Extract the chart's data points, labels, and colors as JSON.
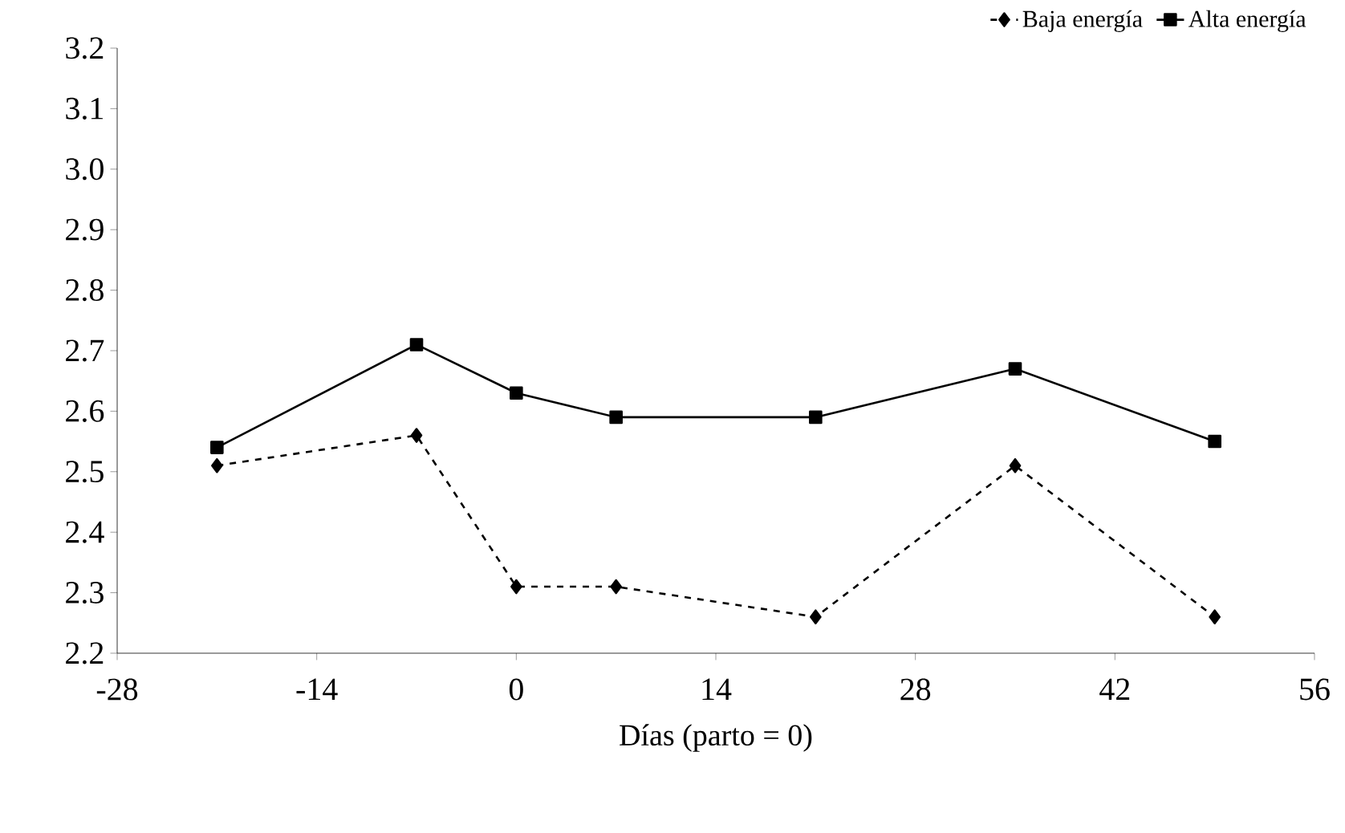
{
  "chart_data": {
    "type": "line",
    "xlabel": "Días (parto = 0)",
    "x": [
      -21,
      -7,
      0,
      7,
      21,
      35,
      49
    ],
    "series": [
      {
        "name": "Baja energía",
        "color": "#000000",
        "marker": "diamond",
        "line_style": "dashed",
        "values": [
          2.51,
          2.56,
          2.31,
          2.31,
          2.26,
          2.51,
          2.26
        ]
      },
      {
        "name": "Alta energía",
        "color": "#000000",
        "marker": "square",
        "line_style": "solid",
        "values": [
          2.54,
          2.71,
          2.63,
          2.59,
          2.59,
          2.67,
          2.55
        ]
      }
    ],
    "xlim": [
      -28,
      56
    ],
    "xticks": [
      -28,
      -14,
      0,
      14,
      28,
      42,
      56
    ],
    "ylim": [
      2.2,
      3.2
    ],
    "yticks": [
      {
        "value": 2.2,
        "label": "2.2"
      },
      {
        "value": 2.3,
        "label": "2.3"
      },
      {
        "value": 2.4,
        "label": "2.4"
      },
      {
        "value": 2.5,
        "label": "2.5"
      },
      {
        "value": 2.6,
        "label": "2.6"
      },
      {
        "value": 2.7,
        "label": "2.7"
      },
      {
        "value": 2.8,
        "label": "2.8"
      },
      {
        "value": 2.9,
        "label": "2.9"
      },
      {
        "value": 3.0,
        "label": "3.0"
      },
      {
        "value": 3.1,
        "label": "3.1"
      },
      {
        "value": 3.2,
        "label": "3.2"
      }
    ],
    "grid": false,
    "legend": "top right"
  }
}
